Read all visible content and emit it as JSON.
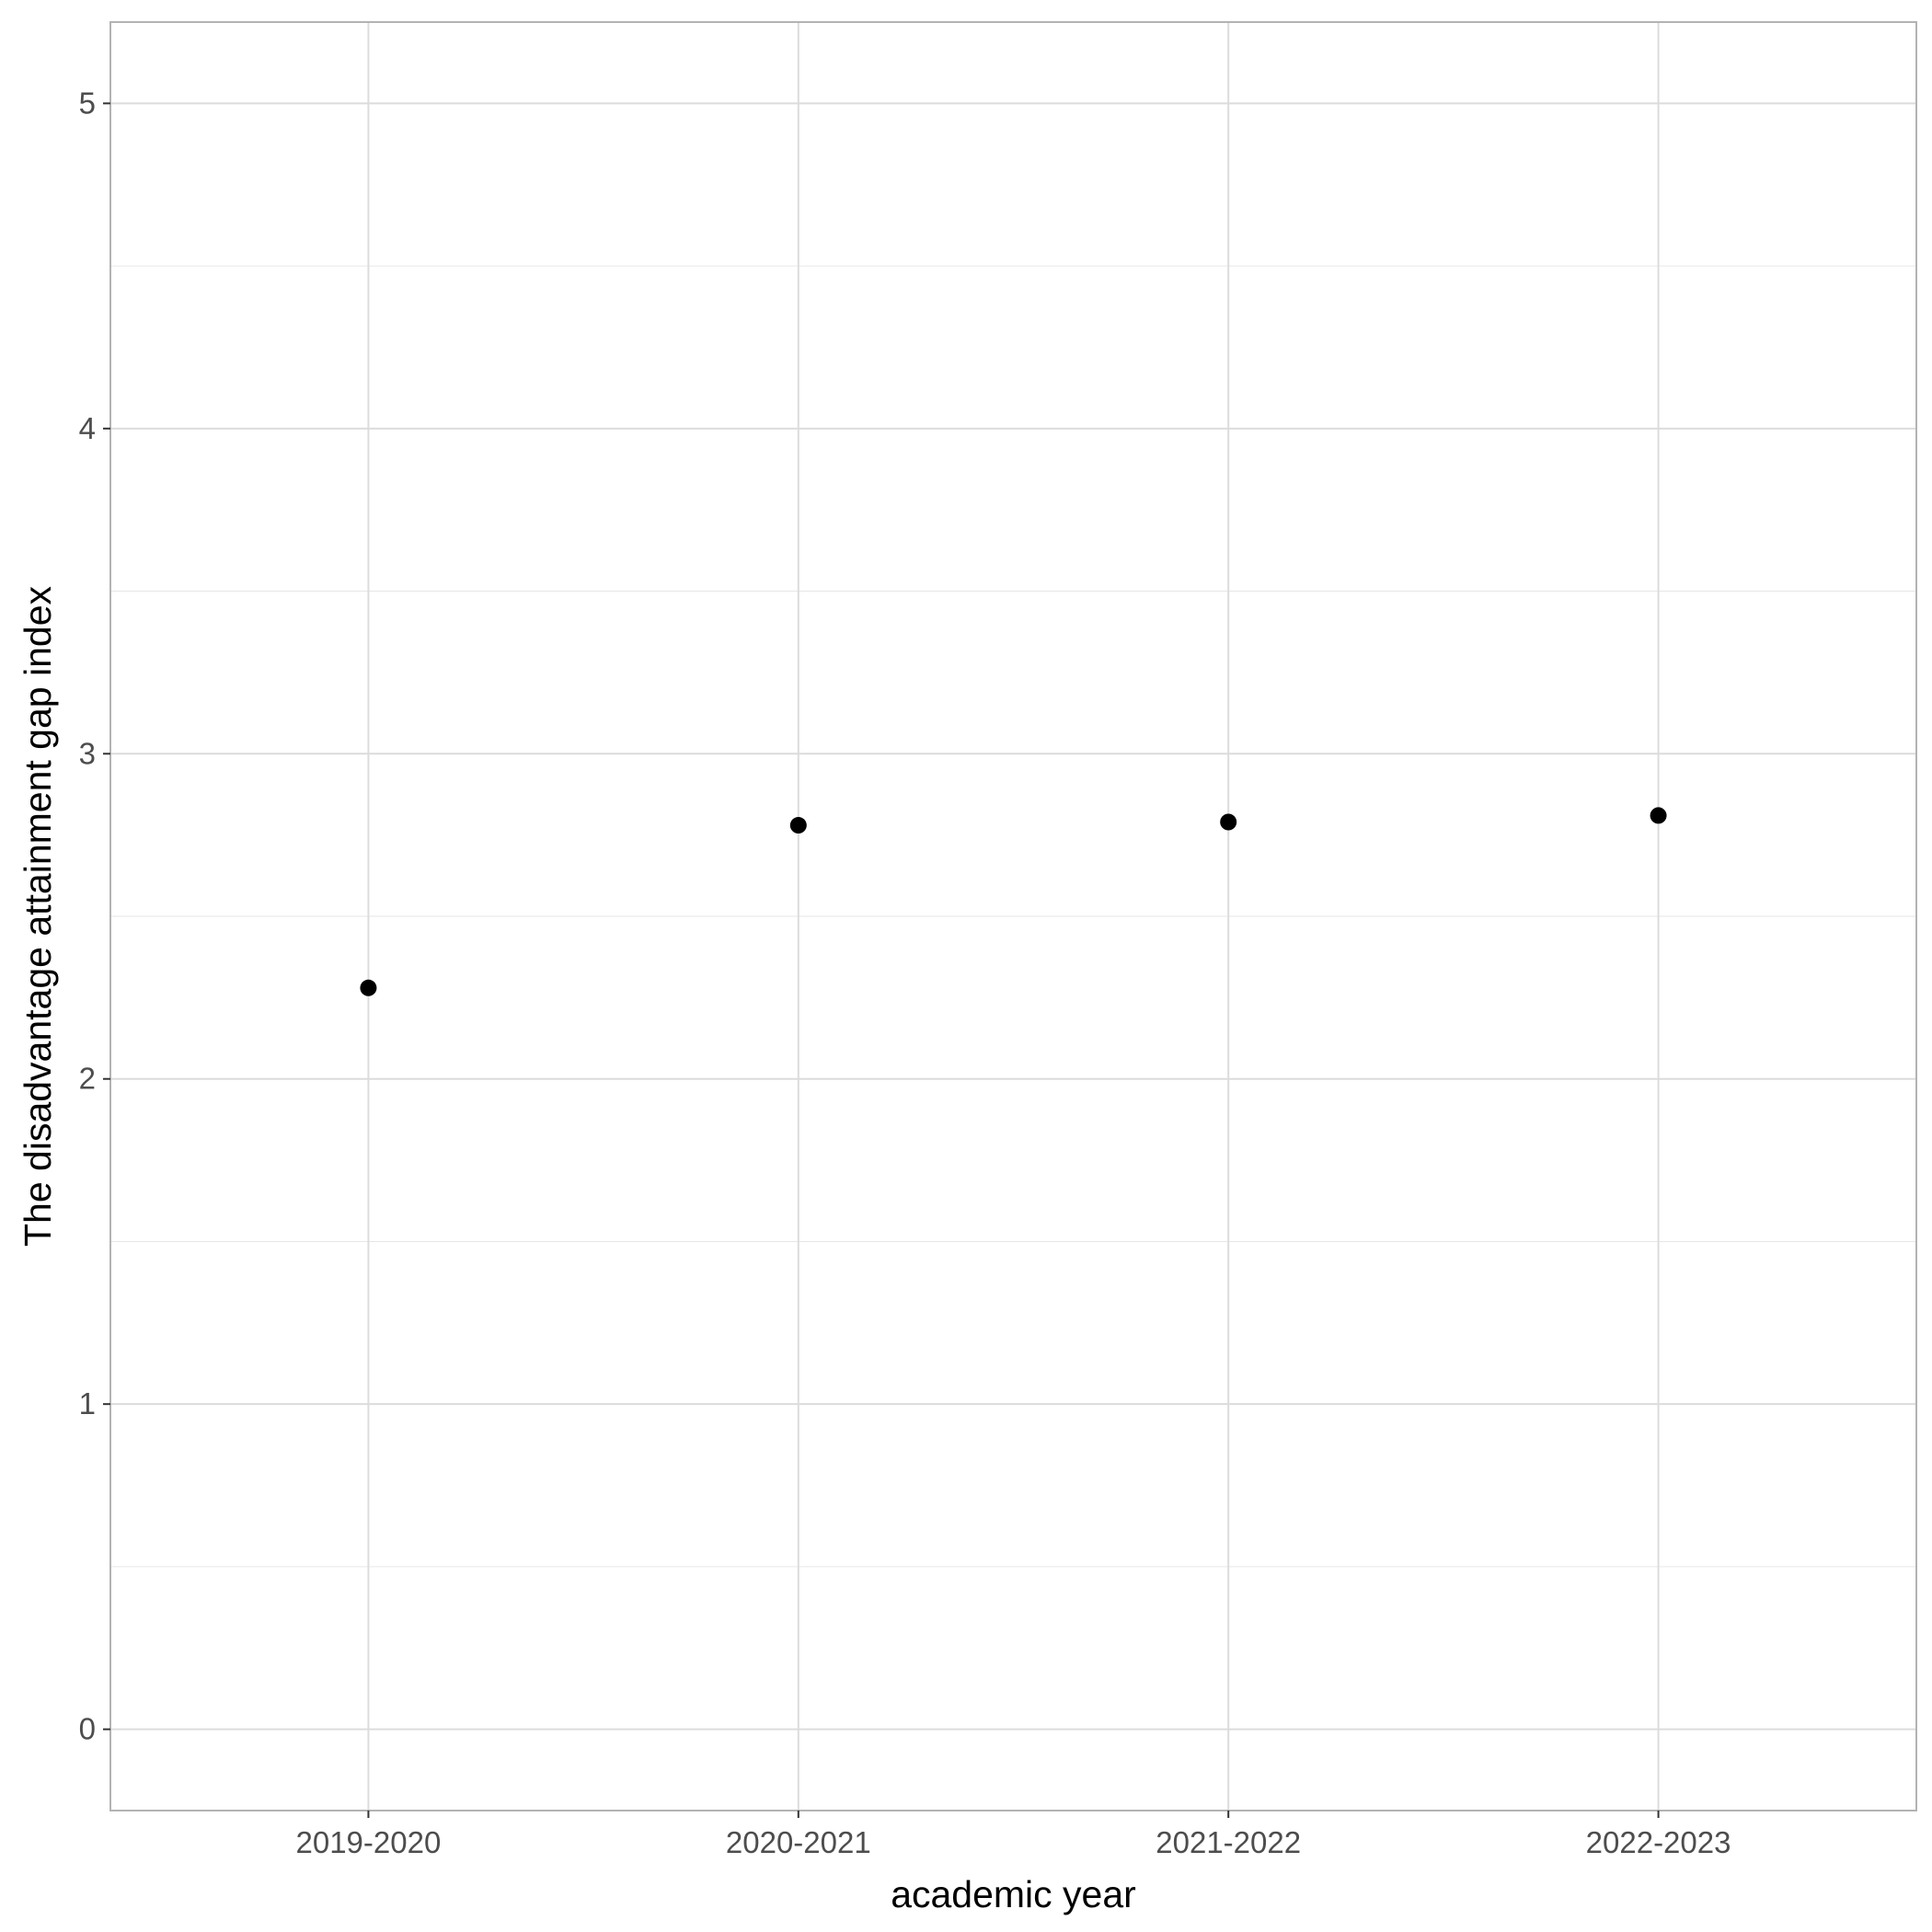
{
  "chart_data": {
    "type": "scatter",
    "title": "",
    "xlabel": "academic year",
    "ylabel": "The disadvantage attainment gap index",
    "categories": [
      "2019-2020",
      "2020-2021",
      "2021-2022",
      "2022-2023"
    ],
    "values": [
      2.28,
      2.78,
      2.79,
      2.81
    ],
    "ylim": [
      -0.25,
      5.25
    ],
    "yticks": [
      0,
      1,
      2,
      3,
      4,
      5
    ],
    "grid": true,
    "point_color": "#000000",
    "grid_color": "#dcdcdc",
    "panel_border_color": "#b3b3b3"
  }
}
